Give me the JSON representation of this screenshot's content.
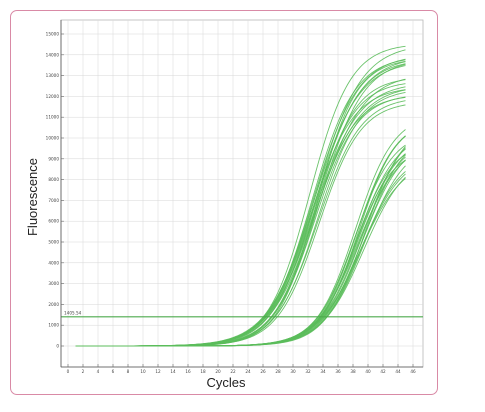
{
  "chart_data": {
    "type": "line",
    "xlabel": "Cycles",
    "ylabel": "Fluorescence",
    "xlim": [
      0,
      46
    ],
    "ylim": [
      -500,
      15500
    ],
    "xticks": [
      0,
      2,
      4,
      6,
      8,
      10,
      12,
      14,
      16,
      18,
      20,
      22,
      24,
      26,
      28,
      30,
      32,
      34,
      36,
      38,
      40,
      42,
      44,
      46
    ],
    "yticks": [
      0,
      1000,
      2000,
      3000,
      4000,
      5000,
      6000,
      7000,
      8000,
      9000,
      10000,
      11000,
      12000,
      13000,
      14000,
      15000
    ],
    "ytick_labels": [
      "0",
      "1000",
      "2000",
      "3000",
      "4000",
      "5000",
      "6000",
      "7000",
      "8000",
      "9000",
      "10000",
      "11000",
      "12000",
      "13000",
      "14000",
      "15000"
    ],
    "threshold": {
      "value": 1405.54,
      "label": "1405.54"
    },
    "grid": true,
    "curve_color": "#5bbd5b",
    "threshold_color": "#4daa4d",
    "series_groups": [
      {
        "count": 20,
        "x_start": 1,
        "x_end": 45,
        "midpoint_range": [
          32.2,
          33.6
        ],
        "plateau_range": [
          11600,
          14800
        ],
        "slope_range": [
          2.6,
          3.1
        ]
      },
      {
        "count": 20,
        "x_start": 1,
        "x_end": 45,
        "midpoint_range": [
          38.2,
          39.6
        ],
        "plateau_range": [
          9000,
          11200
        ],
        "slope_range": [
          2.5,
          2.9
        ]
      }
    ]
  }
}
